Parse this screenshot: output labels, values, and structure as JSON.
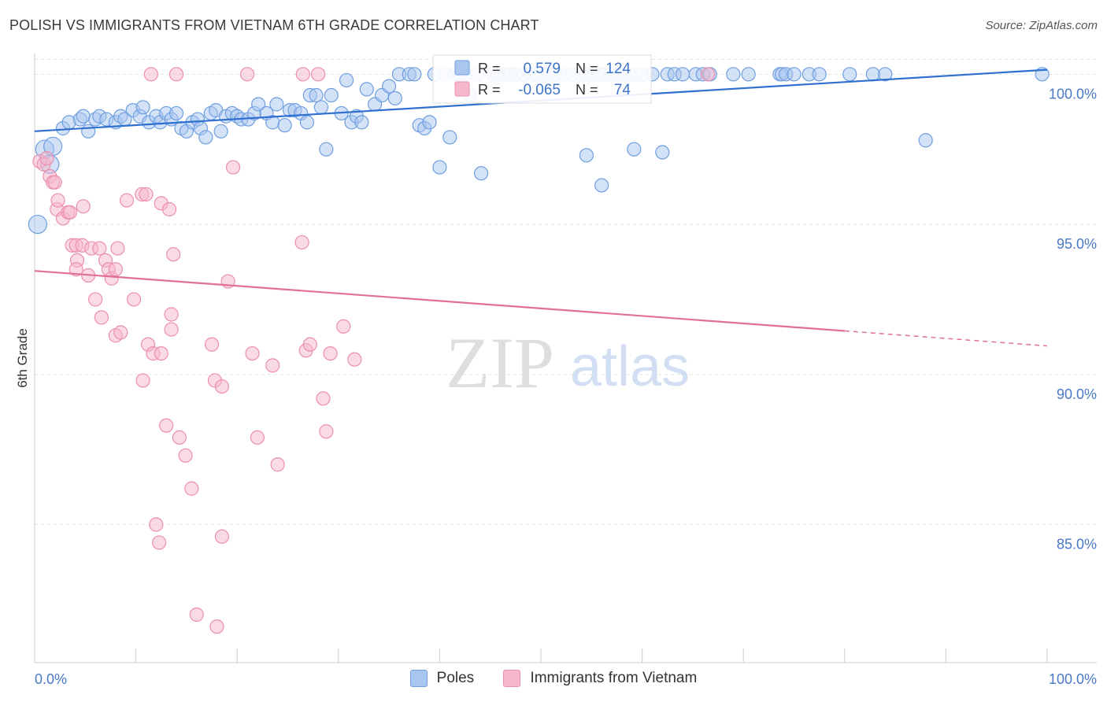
{
  "title": "POLISH VS IMMIGRANTS FROM VIETNAM 6TH GRADE CORRELATION CHART",
  "source": "Source: ZipAtlas.com",
  "watermark": {
    "zip": "ZIP",
    "atlas": "atlas"
  },
  "colors": {
    "poles_fill": "#a9c6ef",
    "poles_stroke": "#6f9fe0",
    "poles_line": "#2f6fcf",
    "viet_fill": "#f6b6cb",
    "viet_stroke": "#ec8fae",
    "viet_line": "#e0709a",
    "axis_label": "#4a78c8",
    "grid": "#e3e3e3"
  },
  "stats_box": {
    "rows": [
      {
        "r_label": "R =",
        "r_value": "0.579",
        "n_label": "N =",
        "n_value": "124"
      },
      {
        "r_label": "R =",
        "r_value": "-0.065",
        "n_label": "N =",
        "n_value": "74"
      }
    ]
  },
  "chart_data": {
    "type": "scatter",
    "ylabel": "6th Grade",
    "xlim": [
      0,
      100
    ],
    "ylim": [
      80.4,
      100.9
    ],
    "x_tick_labels": [
      "0.0%",
      "100.0%"
    ],
    "y_ticks": [
      85,
      90,
      95,
      100
    ],
    "y_tick_labels": [
      "85.0%",
      "90.0%",
      "95.0%",
      "100.0%"
    ],
    "grid": "horizontal dashed",
    "legend_position": "bottom-center",
    "series": [
      {
        "name": "Poles",
        "trend": {
          "x0": 0,
          "y0": 98.1,
          "x1": 100,
          "y1": 100.15,
          "solid_to": 100
        },
        "points": [
          [
            0.3,
            95.0
          ],
          [
            1.0,
            97.5
          ],
          [
            1.5,
            97.0
          ],
          [
            1.8,
            97.6
          ],
          [
            2.8,
            98.2
          ],
          [
            3.4,
            98.4
          ],
          [
            4.5,
            98.5
          ],
          [
            4.8,
            98.6
          ],
          [
            5.3,
            98.1
          ],
          [
            6.0,
            98.5
          ],
          [
            6.4,
            98.6
          ],
          [
            7.1,
            98.5
          ],
          [
            8.0,
            98.4
          ],
          [
            8.5,
            98.6
          ],
          [
            8.9,
            98.5
          ],
          [
            9.7,
            98.8
          ],
          [
            10.4,
            98.6
          ],
          [
            10.7,
            98.9
          ],
          [
            11.3,
            98.4
          ],
          [
            12.0,
            98.6
          ],
          [
            12.4,
            98.4
          ],
          [
            13.0,
            98.7
          ],
          [
            13.5,
            98.5
          ],
          [
            14.0,
            98.7
          ],
          [
            14.5,
            98.2
          ],
          [
            15.0,
            98.1
          ],
          [
            15.6,
            98.4
          ],
          [
            16.1,
            98.5
          ],
          [
            16.4,
            98.2
          ],
          [
            16.9,
            97.9
          ],
          [
            17.4,
            98.7
          ],
          [
            17.9,
            98.8
          ],
          [
            18.4,
            98.1
          ],
          [
            18.9,
            98.6
          ],
          [
            19.5,
            98.7
          ],
          [
            20.0,
            98.6
          ],
          [
            20.4,
            98.5
          ],
          [
            21.1,
            98.5
          ],
          [
            21.7,
            98.7
          ],
          [
            22.1,
            99.0
          ],
          [
            22.9,
            98.7
          ],
          [
            23.5,
            98.4
          ],
          [
            23.9,
            99.0
          ],
          [
            24.7,
            98.3
          ],
          [
            25.2,
            98.8
          ],
          [
            25.7,
            98.8
          ],
          [
            26.3,
            98.7
          ],
          [
            26.9,
            98.4
          ],
          [
            27.2,
            99.3
          ],
          [
            27.8,
            99.3
          ],
          [
            28.3,
            98.9
          ],
          [
            28.8,
            97.5
          ],
          [
            29.3,
            99.3
          ],
          [
            30.3,
            98.7
          ],
          [
            30.8,
            99.8
          ],
          [
            31.3,
            98.4
          ],
          [
            31.8,
            98.6
          ],
          [
            32.3,
            98.4
          ],
          [
            32.8,
            99.5
          ],
          [
            33.6,
            99.0
          ],
          [
            34.3,
            99.3
          ],
          [
            35.0,
            99.6
          ],
          [
            35.6,
            99.2
          ],
          [
            36.0,
            100.0
          ],
          [
            37.0,
            100.0
          ],
          [
            37.5,
            100.0
          ],
          [
            38.0,
            98.3
          ],
          [
            38.5,
            98.2
          ],
          [
            39.0,
            98.4
          ],
          [
            39.5,
            100.0
          ],
          [
            40.0,
            96.9
          ],
          [
            40.5,
            100.0
          ],
          [
            41.0,
            97.9
          ],
          [
            41.5,
            100.0
          ],
          [
            42.0,
            100.0
          ],
          [
            42.5,
            100.0
          ],
          [
            43.0,
            99.3
          ],
          [
            43.7,
            100.0
          ],
          [
            44.1,
            96.7
          ],
          [
            45.2,
            100.0
          ],
          [
            45.7,
            100.0
          ],
          [
            46.5,
            100.0
          ],
          [
            47.0,
            100.0
          ],
          [
            47.5,
            100.0
          ],
          [
            48.3,
            100.0
          ],
          [
            49.0,
            100.0
          ],
          [
            49.5,
            100.0
          ],
          [
            50.3,
            100.0
          ],
          [
            50.8,
            100.0
          ],
          [
            51.5,
            100.0
          ],
          [
            52.3,
            100.0
          ],
          [
            53.1,
            100.0
          ],
          [
            54.0,
            100.0
          ],
          [
            54.5,
            100.0
          ],
          [
            55.3,
            100.0
          ],
          [
            55.9,
            100.0
          ],
          [
            56.3,
            100.0
          ],
          [
            56.9,
            100.0
          ],
          [
            57.6,
            100.0
          ],
          [
            58.2,
            100.0
          ],
          [
            58.8,
            100.0
          ],
          [
            59.4,
            100.0
          ],
          [
            60.0,
            100.0
          ],
          [
            61.0,
            100.0
          ],
          [
            62.5,
            100.0
          ],
          [
            63.2,
            100.0
          ],
          [
            64.0,
            100.0
          ],
          [
            65.3,
            100.0
          ],
          [
            66.0,
            100.0
          ],
          [
            66.7,
            100.0
          ],
          [
            69.0,
            100.0
          ],
          [
            70.5,
            100.0
          ],
          [
            73.6,
            100.0
          ],
          [
            73.8,
            100.0
          ],
          [
            74.2,
            100.0
          ],
          [
            75.0,
            100.0
          ],
          [
            76.5,
            100.0
          ],
          [
            77.5,
            100.0
          ],
          [
            80.5,
            100.0
          ],
          [
            82.8,
            100.0
          ],
          [
            84.0,
            100.0
          ],
          [
            88.0,
            97.8
          ],
          [
            99.5,
            100.0
          ],
          [
            56.0,
            96.3
          ],
          [
            54.5,
            97.3
          ],
          [
            59.2,
            97.5
          ],
          [
            62.0,
            97.4
          ]
        ]
      },
      {
        "name": "Immigrants from Vietnam",
        "trend": {
          "x0": 0,
          "y0": 93.45,
          "x1": 100,
          "y1": 90.95,
          "solid_to": 80
        },
        "points": [
          [
            0.5,
            97.1
          ],
          [
            0.9,
            97.0
          ],
          [
            1.2,
            97.2
          ],
          [
            1.5,
            96.6
          ],
          [
            1.8,
            96.4
          ],
          [
            2.0,
            96.4
          ],
          [
            2.2,
            95.5
          ],
          [
            2.3,
            95.8
          ],
          [
            2.8,
            95.2
          ],
          [
            3.3,
            95.4
          ],
          [
            3.5,
            95.4
          ],
          [
            4.8,
            95.6
          ],
          [
            3.7,
            94.3
          ],
          [
            4.1,
            94.3
          ],
          [
            4.7,
            94.3
          ],
          [
            5.6,
            94.2
          ],
          [
            6.4,
            94.2
          ],
          [
            8.2,
            94.2
          ],
          [
            4.2,
            93.8
          ],
          [
            4.1,
            93.5
          ],
          [
            5.3,
            93.3
          ],
          [
            7.0,
            93.8
          ],
          [
            7.3,
            93.5
          ],
          [
            7.6,
            93.2
          ],
          [
            8.0,
            93.5
          ],
          [
            9.1,
            95.8
          ],
          [
            10.6,
            96.0
          ],
          [
            11.0,
            96.0
          ],
          [
            12.5,
            95.7
          ],
          [
            13.3,
            95.5
          ],
          [
            13.7,
            94.0
          ],
          [
            6.0,
            92.5
          ],
          [
            6.6,
            91.9
          ],
          [
            8.0,
            91.3
          ],
          [
            8.5,
            91.4
          ],
          [
            9.8,
            92.5
          ],
          [
            10.7,
            89.8
          ],
          [
            11.2,
            91.0
          ],
          [
            11.7,
            90.7
          ],
          [
            12.5,
            90.7
          ],
          [
            13.5,
            92.0
          ],
          [
            13.5,
            91.5
          ],
          [
            14.3,
            87.9
          ],
          [
            14.9,
            87.3
          ],
          [
            17.5,
            91.0
          ],
          [
            17.8,
            89.8
          ],
          [
            18.5,
            89.6
          ],
          [
            19.1,
            93.1
          ],
          [
            19.6,
            96.9
          ],
          [
            21.5,
            90.7
          ],
          [
            22.0,
            87.9
          ],
          [
            23.5,
            90.3
          ],
          [
            24.0,
            87.0
          ],
          [
            26.4,
            94.4
          ],
          [
            26.8,
            90.8
          ],
          [
            27.2,
            91.0
          ],
          [
            28.5,
            89.2
          ],
          [
            28.8,
            88.1
          ],
          [
            29.2,
            90.7
          ],
          [
            30.5,
            91.6
          ],
          [
            31.6,
            90.5
          ],
          [
            13.0,
            88.3
          ],
          [
            15.5,
            86.2
          ],
          [
            12.0,
            85.0
          ],
          [
            12.3,
            84.4
          ],
          [
            18.5,
            84.6
          ],
          [
            16.0,
            82.0
          ],
          [
            18.0,
            81.6
          ],
          [
            11.5,
            100.0
          ],
          [
            14.0,
            100.0
          ],
          [
            21.0,
            100.0
          ],
          [
            26.5,
            100.0
          ],
          [
            28.0,
            100.0
          ],
          [
            66.5,
            100.0
          ]
        ]
      }
    ]
  },
  "legend": {
    "items": [
      "Poles",
      "Immigrants from Vietnam"
    ]
  }
}
